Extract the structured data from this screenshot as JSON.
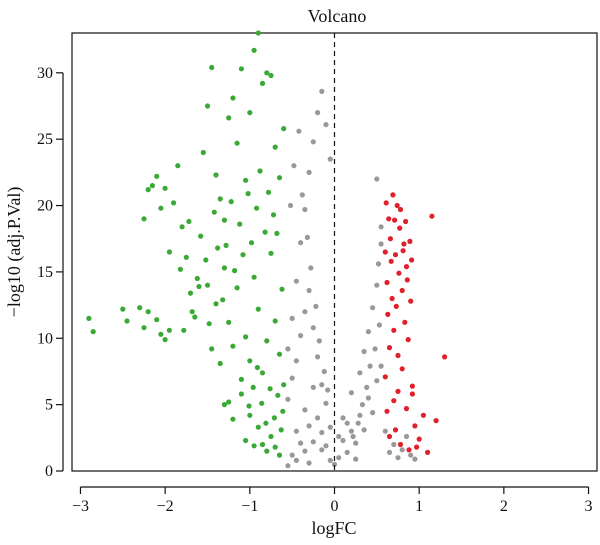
{
  "chart_data": {
    "type": "scatter",
    "title": "Volcano",
    "xlabel": "logFC",
    "ylabel": "−log10 (adj.P.Val)",
    "xlim": [
      -3.1,
      3.1
    ],
    "ylim": [
      0,
      33
    ],
    "x_ticks": [
      -3,
      -2,
      -1,
      0,
      1,
      2,
      3
    ],
    "x_tick_labels": [
      "−3",
      "−2",
      "−1",
      "0",
      "1",
      "2",
      "3"
    ],
    "y_ticks": [
      0,
      5,
      10,
      15,
      20,
      25,
      30
    ],
    "y_tick_labels": [
      "0",
      "5",
      "10",
      "15",
      "20",
      "25",
      "30"
    ],
    "vertical_reference_line": {
      "x": 0,
      "style": "dashed"
    },
    "grid": false,
    "legend": "none",
    "series": [
      {
        "color": "#3aa935",
        "points": [
          [
            -2.9,
            11.5
          ],
          [
            -2.85,
            10.5
          ],
          [
            -2.5,
            12.2
          ],
          [
            -2.45,
            11.3
          ],
          [
            -2.3,
            12.3
          ],
          [
            -2.25,
            10.8
          ],
          [
            -2.2,
            12.0
          ],
          [
            -2.1,
            11.4
          ],
          [
            -2.05,
            10.3
          ],
          [
            -2.0,
            9.9
          ],
          [
            -1.95,
            10.6
          ],
          [
            -2.2,
            21.2
          ],
          [
            -2.15,
            21.5
          ],
          [
            -2.25,
            19.0
          ],
          [
            -2.1,
            22.2
          ],
          [
            -2.05,
            19.8
          ],
          [
            -2.0,
            21.3
          ],
          [
            -1.9,
            20.2
          ],
          [
            -1.85,
            23.0
          ],
          [
            -1.8,
            18.4
          ],
          [
            -1.75,
            16.1
          ],
          [
            -1.95,
            16.5
          ],
          [
            -1.7,
            13.4
          ],
          [
            -1.65,
            11.6
          ],
          [
            -1.6,
            13.9
          ],
          [
            -1.55,
            24.0
          ],
          [
            -1.5,
            27.5
          ],
          [
            -1.45,
            30.4
          ],
          [
            -1.4,
            22.3
          ],
          [
            -1.35,
            20.5
          ],
          [
            -1.3,
            18.9
          ],
          [
            -1.25,
            26.6
          ],
          [
            -1.2,
            28.1
          ],
          [
            -1.15,
            24.7
          ],
          [
            -1.1,
            30.3
          ],
          [
            -1.05,
            21.9
          ],
          [
            -1.0,
            27.0
          ],
          [
            -0.95,
            31.7
          ],
          [
            -0.9,
            33.0
          ],
          [
            -0.85,
            29.2
          ],
          [
            -0.8,
            30.0
          ],
          [
            -0.75,
            29.8
          ],
          [
            -0.7,
            24.4
          ],
          [
            -0.65,
            22.1
          ],
          [
            -0.6,
            25.8
          ],
          [
            -1.3,
            5.0
          ],
          [
            -1.25,
            5.2
          ],
          [
            -1.2,
            3.9
          ],
          [
            -1.1,
            5.8
          ],
          [
            -1.05,
            2.3
          ],
          [
            -1.0,
            4.2
          ],
          [
            -0.95,
            1.9
          ],
          [
            -0.9,
            3.3
          ],
          [
            -0.85,
            2.0
          ],
          [
            -0.8,
            1.5
          ],
          [
            -0.75,
            2.6
          ],
          [
            -0.7,
            1.8
          ],
          [
            -0.65,
            1.2
          ],
          [
            -1.5,
            14.0
          ],
          [
            -1.45,
            9.2
          ],
          [
            -1.4,
            12.6
          ],
          [
            -1.35,
            8.1
          ],
          [
            -1.3,
            15.3
          ],
          [
            -1.25,
            11.2
          ],
          [
            -1.2,
            9.4
          ],
          [
            -1.15,
            13.8
          ],
          [
            -1.1,
            6.9
          ],
          [
            -1.05,
            10.1
          ],
          [
            -1.0,
            8.3
          ],
          [
            -0.95,
            14.6
          ],
          [
            -0.9,
            12.2
          ],
          [
            -0.85,
            7.4
          ],
          [
            -0.8,
            9.8
          ],
          [
            -0.75,
            16.4
          ],
          [
            -0.7,
            11.3
          ],
          [
            -0.65,
            8.8
          ],
          [
            -0.6,
            6.5
          ],
          [
            -0.62,
            13.7
          ],
          [
            -0.68,
            17.9
          ],
          [
            -0.72,
            19.3
          ],
          [
            -0.78,
            21.0
          ],
          [
            -0.82,
            18.0
          ],
          [
            -0.88,
            22.6
          ],
          [
            -0.92,
            19.8
          ],
          [
            -0.98,
            17.2
          ],
          [
            -1.02,
            20.9
          ],
          [
            -1.08,
            16.3
          ],
          [
            -1.12,
            18.6
          ],
          [
            -1.18,
            15.1
          ],
          [
            -1.22,
            20.3
          ],
          [
            -1.28,
            17.0
          ],
          [
            -1.32,
            12.9
          ],
          [
            -1.38,
            16.8
          ],
          [
            -1.42,
            19.5
          ],
          [
            -1.48,
            11.1
          ],
          [
            -1.52,
            15.9
          ],
          [
            -1.58,
            17.7
          ],
          [
            -1.62,
            14.5
          ],
          [
            -1.68,
            12.0
          ],
          [
            -1.72,
            18.8
          ],
          [
            -1.78,
            10.6
          ],
          [
            -1.82,
            15.2
          ],
          [
            -0.61,
            4.5
          ],
          [
            -0.63,
            3.1
          ],
          [
            -0.67,
            5.7
          ],
          [
            -0.71,
            4.0
          ],
          [
            -0.76,
            6.2
          ],
          [
            -0.81,
            3.6
          ],
          [
            -0.86,
            5.1
          ],
          [
            -0.91,
            7.8
          ],
          [
            -0.96,
            6.3
          ],
          [
            -1.01,
            4.9
          ]
        ]
      },
      {
        "color": "#999999",
        "points": [
          [
            -0.55,
            0.4
          ],
          [
            -0.5,
            1.2
          ],
          [
            -0.45,
            0.8
          ],
          [
            -0.4,
            2.1
          ],
          [
            -0.35,
            1.5
          ],
          [
            -0.3,
            3.4
          ],
          [
            -0.25,
            2.2
          ],
          [
            -0.2,
            4.0
          ],
          [
            -0.15,
            2.9
          ],
          [
            -0.1,
            5.1
          ],
          [
            -0.05,
            3.3
          ],
          [
            0.0,
            0.5
          ],
          [
            0.05,
            1.0
          ],
          [
            0.1,
            2.3
          ],
          [
            0.15,
            1.4
          ],
          [
            0.2,
            3.0
          ],
          [
            0.25,
            2.1
          ],
          [
            0.3,
            4.2
          ],
          [
            0.35,
            3.1
          ],
          [
            0.4,
            5.5
          ],
          [
            0.45,
            4.4
          ],
          [
            0.5,
            6.8
          ],
          [
            0.55,
            7.9
          ],
          [
            -0.55,
            9.2
          ],
          [
            -0.5,
            11.5
          ],
          [
            -0.45,
            14.3
          ],
          [
            -0.4,
            17.2
          ],
          [
            -0.35,
            19.7
          ],
          [
            -0.3,
            22.5
          ],
          [
            -0.25,
            24.8
          ],
          [
            -0.2,
            27.0
          ],
          [
            -0.15,
            28.6
          ],
          [
            -0.1,
            26.1
          ],
          [
            -0.05,
            23.5
          ],
          [
            -0.52,
            20.0
          ],
          [
            -0.48,
            23.0
          ],
          [
            -0.42,
            25.6
          ],
          [
            -0.38,
            20.8
          ],
          [
            -0.32,
            17.6
          ],
          [
            -0.28,
            15.3
          ],
          [
            -0.22,
            12.4
          ],
          [
            -0.18,
            9.8
          ],
          [
            -0.12,
            7.5
          ],
          [
            -0.08,
            6.1
          ],
          [
            -0.55,
            5.4
          ],
          [
            -0.5,
            7.0
          ],
          [
            -0.45,
            8.3
          ],
          [
            -0.4,
            10.2
          ],
          [
            -0.35,
            12.0
          ],
          [
            -0.3,
            13.6
          ],
          [
            -0.25,
            10.8
          ],
          [
            -0.2,
            8.6
          ],
          [
            -0.15,
            6.5
          ],
          [
            0.1,
            4.0
          ],
          [
            0.2,
            5.9
          ],
          [
            0.3,
            7.4
          ],
          [
            0.35,
            9.0
          ],
          [
            0.4,
            10.5
          ],
          [
            0.45,
            12.3
          ],
          [
            0.5,
            14.0
          ],
          [
            0.52,
            15.6
          ],
          [
            0.55,
            17.1
          ],
          [
            0.55,
            18.4
          ],
          [
            0.53,
            11.0
          ],
          [
            0.48,
            9.2
          ],
          [
            0.42,
            7.9
          ],
          [
            0.38,
            6.3
          ],
          [
            0.33,
            5.0
          ],
          [
            0.28,
            3.6
          ],
          [
            0.22,
            2.6
          ],
          [
            0.5,
            22.0
          ],
          [
            0.6,
            3.0
          ],
          [
            0.7,
            2.0
          ],
          [
            0.8,
            1.6
          ],
          [
            0.9,
            1.2
          ],
          [
            0.95,
            0.9
          ],
          [
            0.85,
            2.6
          ],
          [
            0.75,
            1.0
          ],
          [
            0.65,
            1.4
          ],
          [
            -0.05,
            0.8
          ],
          [
            -0.3,
            0.6
          ],
          [
            -0.15,
            1.6
          ],
          [
            0.05,
            2.6
          ],
          [
            0.15,
            3.6
          ],
          [
            0.25,
            0.9
          ],
          [
            -0.45,
            3.0
          ],
          [
            -0.35,
            4.6
          ],
          [
            -0.25,
            6.3
          ],
          [
            -0.1,
            1.9
          ]
        ]
      },
      {
        "color": "#e0202a",
        "points": [
          [
            0.6,
            16.5
          ],
          [
            0.62,
            14.2
          ],
          [
            0.63,
            11.8
          ],
          [
            0.65,
            9.3
          ],
          [
            0.66,
            17.5
          ],
          [
            0.67,
            15.8
          ],
          [
            0.68,
            13.0
          ],
          [
            0.7,
            10.6
          ],
          [
            0.71,
            18.9
          ],
          [
            0.72,
            16.3
          ],
          [
            0.73,
            12.4
          ],
          [
            0.75,
            8.7
          ],
          [
            0.76,
            14.9
          ],
          [
            0.78,
            19.7
          ],
          [
            0.8,
            13.6
          ],
          [
            0.82,
            17.1
          ],
          [
            0.83,
            11.2
          ],
          [
            0.85,
            15.4
          ],
          [
            0.87,
            9.9
          ],
          [
            0.9,
            12.8
          ],
          [
            0.92,
            6.4
          ],
          [
            0.95,
            3.4
          ],
          [
            0.97,
            1.8
          ],
          [
            1.0,
            2.4
          ],
          [
            1.05,
            4.2
          ],
          [
            1.1,
            1.4
          ],
          [
            1.15,
            19.2
          ],
          [
            1.2,
            3.8
          ],
          [
            1.3,
            8.6
          ],
          [
            0.6,
            7.1
          ],
          [
            0.62,
            4.5
          ],
          [
            0.65,
            2.6
          ],
          [
            0.7,
            5.3
          ],
          [
            0.72,
            3.1
          ],
          [
            0.75,
            6.0
          ],
          [
            0.78,
            2.0
          ],
          [
            0.8,
            7.7
          ],
          [
            0.85,
            4.7
          ],
          [
            0.88,
            1.6
          ],
          [
            0.92,
            5.8
          ],
          [
            0.61,
            20.2
          ],
          [
            0.64,
            19.0
          ],
          [
            0.69,
            20.8
          ],
          [
            0.74,
            20.0
          ],
          [
            0.77,
            18.3
          ],
          [
            0.81,
            16.6
          ],
          [
            0.84,
            18.8
          ],
          [
            0.86,
            14.4
          ],
          [
            0.89,
            17.3
          ],
          [
            0.91,
            15.9
          ]
        ]
      }
    ]
  }
}
